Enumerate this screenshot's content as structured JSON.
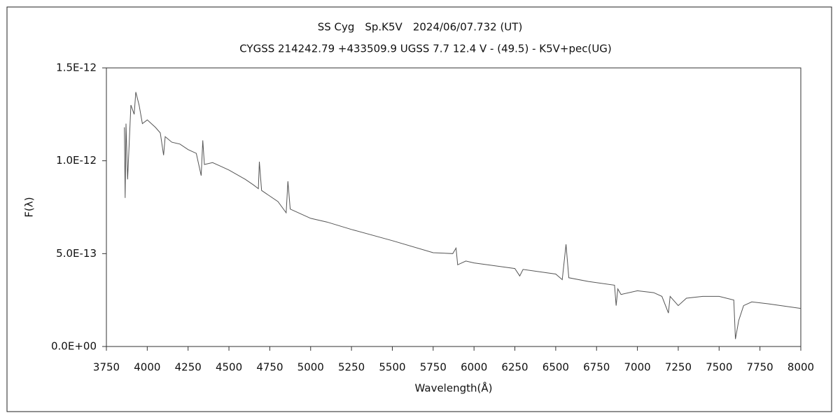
{
  "chart_data": {
    "type": "line",
    "title": "SS Cyg　Sp.K5V　2024/06/07.732 (UT)",
    "subtitle": "CYGSS 214242.79 +433509.9 UGSS 7.7 12.4 V - (49.5) - K5V+pec(UG)",
    "x_label": "Wavelength(Å)",
    "y_label": "F(λ)",
    "xlim": [
      3750,
      8000
    ],
    "xticks": [
      3750,
      4000,
      4250,
      4500,
      4750,
      5000,
      5250,
      5500,
      5750,
      6000,
      6250,
      6500,
      6750,
      7000,
      7250,
      7500,
      7750,
      8000
    ],
    "ylim": [
      0,
      1.5e-12
    ],
    "yticks": [
      {
        "value": 0,
        "label": "0.0E+00"
      },
      {
        "value": 5e-13,
        "label": "5.0E-13"
      },
      {
        "value": 1e-12,
        "label": "1.0E-12"
      },
      {
        "value": 1.5e-12,
        "label": "1.5E-12"
      }
    ],
    "series": [
      {
        "color": "#555555",
        "x": [
          3860,
          3865,
          3870,
          3880,
          3900,
          3920,
          3930,
          3950,
          3970,
          4000,
          4050,
          4080,
          4100,
          4110,
          4150,
          4200,
          4250,
          4300,
          4330,
          4340,
          4350,
          4400,
          4450,
          4500,
          4600,
          4650,
          4680,
          4686,
          4700,
          4800,
          4850,
          4861,
          4875,
          4900,
          5000,
          5100,
          5250,
          5500,
          5750,
          5870,
          5890,
          5900,
          5950,
          6000,
          6250,
          6280,
          6300,
          6500,
          6540,
          6563,
          6580,
          6700,
          6860,
          6870,
          6880,
          6900,
          7000,
          7100,
          7150,
          7190,
          7200,
          7250,
          7300,
          7400,
          7500,
          7590,
          7600,
          7620,
          7650,
          7700,
          7800,
          8000
        ],
        "values": [
          1.18e-12,
          8e-13,
          1.2e-12,
          9e-13,
          1.3e-12,
          1.25e-12,
          1.37e-12,
          1.3e-12,
          1.2e-12,
          1.22e-12,
          1.18e-12,
          1.15e-12,
          1.03e-12,
          1.13e-12,
          1.1e-12,
          1.09e-12,
          1.06e-12,
          1.04e-12,
          9.2e-13,
          1.11e-12,
          9.8e-13,
          9.9e-13,
          9.7e-13,
          9.5e-13,
          9e-13,
          8.7e-13,
          8.5e-13,
          9.95e-13,
          8.4e-13,
          7.8e-13,
          7.2e-13,
          8.9e-13,
          7.4e-13,
          7.3e-13,
          6.9e-13,
          6.7e-13,
          6.3e-13,
          5.7e-13,
          5.05e-13,
          5e-13,
          5.3e-13,
          4.4e-13,
          4.6e-13,
          4.5e-13,
          4.2e-13,
          3.8e-13,
          4.15e-13,
          3.9e-13,
          3.6e-13,
          5.5e-13,
          3.7e-13,
          3.5e-13,
          3.3e-13,
          2.2e-13,
          3.1e-13,
          2.8e-13,
          3e-13,
          2.9e-13,
          2.7e-13,
          1.8e-13,
          2.7e-13,
          2.2e-13,
          2.6e-13,
          2.7e-13,
          2.7e-13,
          2.5e-13,
          4e-14,
          1.4e-13,
          2.2e-13,
          2.4e-13,
          2.3e-13,
          2.05e-13
        ]
      }
    ]
  }
}
